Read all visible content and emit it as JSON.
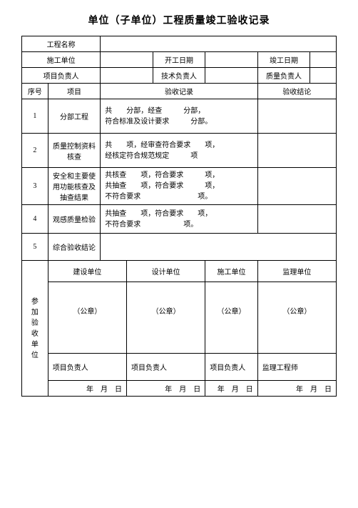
{
  "title": "单位（子单位）工程质量竣工验收记录",
  "header": {
    "project_name_label": "工程名称",
    "construction_unit_label": "施工单位",
    "start_date_label": "开工日期",
    "end_date_label": "竣工日期",
    "project_manager_label": "项目负责人",
    "tech_manager_label": "技术负责人",
    "quality_manager_label": "质量负责人"
  },
  "columns": {
    "seq": "序号",
    "item": "项目",
    "record": "验收记录",
    "conclusion": "验收结论"
  },
  "rows": [
    {
      "seq": "1",
      "item": "分部工程",
      "record": "共　　分部，经查　　　分部，\n符合标准及设计要求　　　分部。"
    },
    {
      "seq": "2",
      "item": "质量控制资料核查",
      "record": "共　　项，经审查符合要求　　项，\n经核定符合规范规定　　　项"
    },
    {
      "seq": "3",
      "item": "安全和主要使用功能核查及抽查结果",
      "record": "共核查　　项，符合要求　　　项，\n共抽查　　项，符合要求　　　项，\n不符合要求　　　　　　　　项。"
    },
    {
      "seq": "4",
      "item": "观感质量检验",
      "record": "共抽查　　项，符合要求　　项，\n不符合要求　　　　　　项。"
    },
    {
      "seq": "5",
      "item": "综合验收结论",
      "record": ""
    }
  ],
  "orgs": {
    "side_label": "参\n加\n验\n收\n单\n位",
    "headers": [
      "建设单位",
      "设计单位",
      "施工单位",
      "监理单位"
    ],
    "seal": "（公章）",
    "signers": [
      "项目负责人",
      "项目负责人",
      "项目负责人",
      "监理工程师"
    ],
    "date": "年　月　日"
  }
}
